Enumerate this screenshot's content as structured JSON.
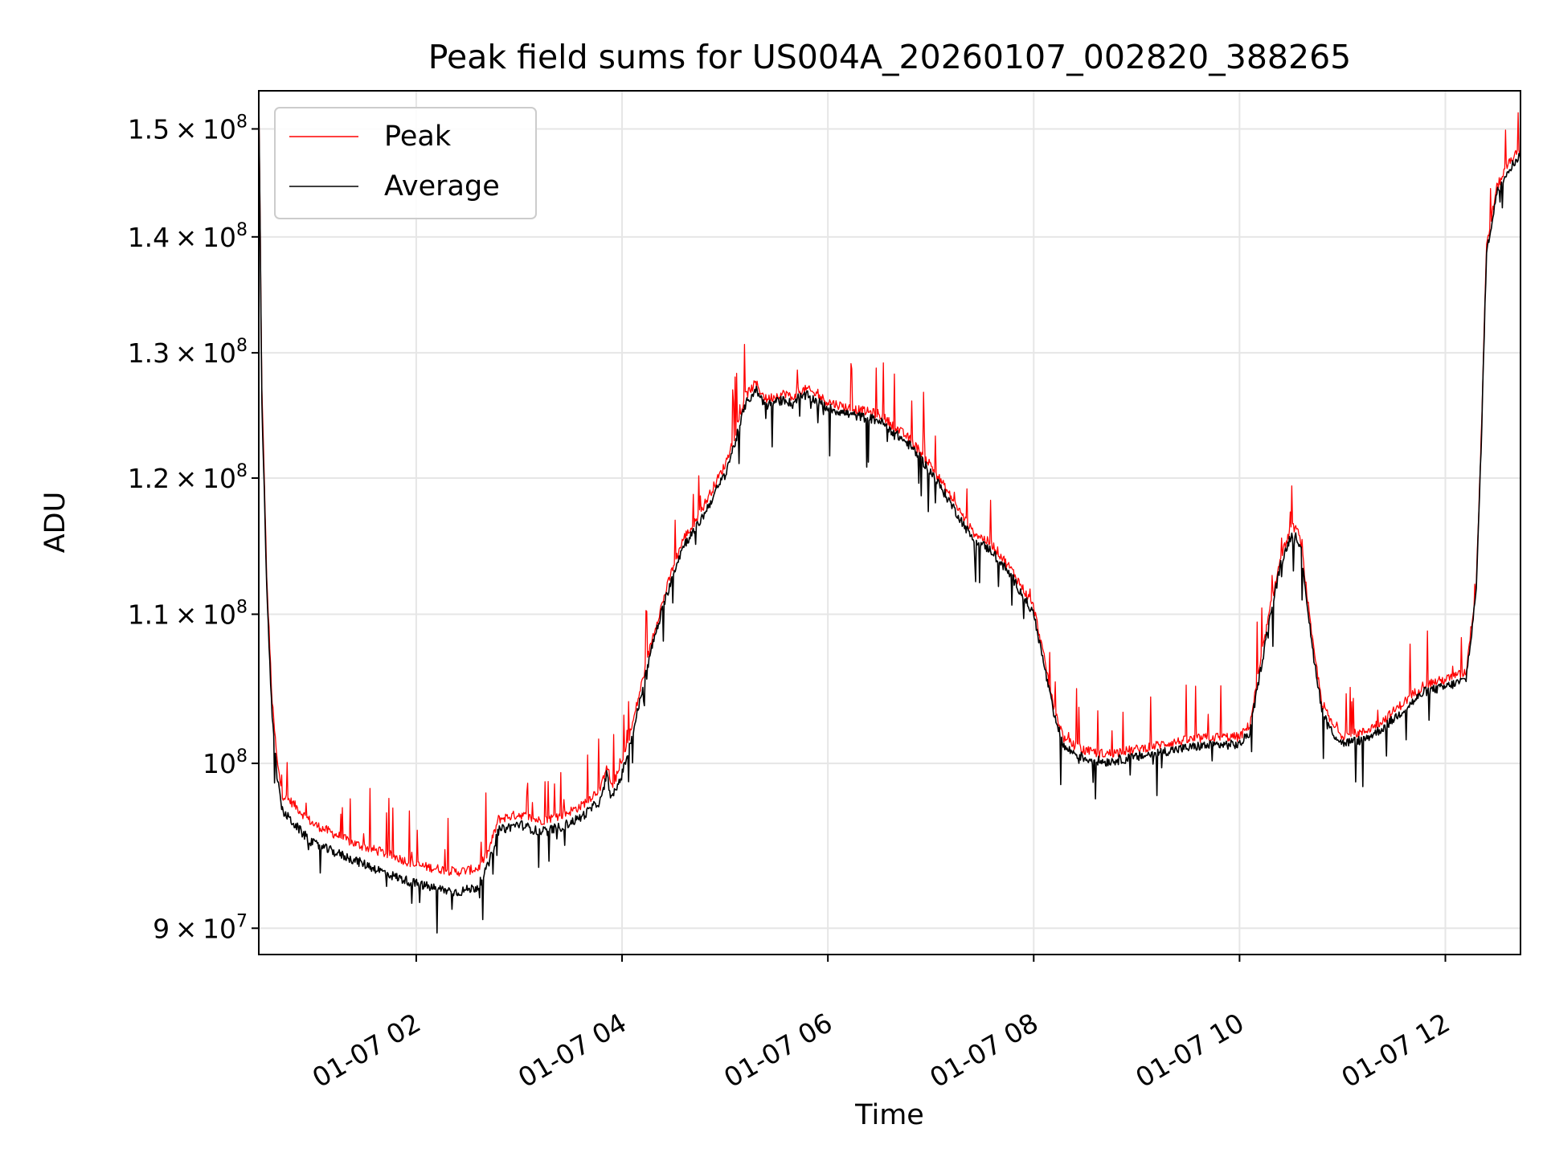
{
  "chart_data": {
    "type": "line",
    "title": "Peak field sums for US004A_20260107_002820_388265",
    "xlabel": "Time",
    "ylabel": "ADU",
    "yscale": "log",
    "grid": true,
    "legend_position": "upper-left",
    "x_unit": "hours since 2026-01-07 00:00",
    "xlim": [
      0.47,
      12.73
    ],
    "ylim": [
      88500000,
      153700000
    ],
    "x_ticks": [
      {
        "x": 2,
        "label": "01-07 02"
      },
      {
        "x": 4,
        "label": "01-07 04"
      },
      {
        "x": 6,
        "label": "01-07 06"
      },
      {
        "x": 8,
        "label": "01-07 08"
      },
      {
        "x": 10,
        "label": "01-07 10"
      },
      {
        "x": 12,
        "label": "01-07 12"
      }
    ],
    "y_ticks": [
      {
        "value": 90000000,
        "mantissa": "9",
        "exp": "7"
      },
      {
        "value": 100000000,
        "mantissa": "",
        "exp": "8"
      },
      {
        "value": 110000000,
        "mantissa": "1.1",
        "exp": "8"
      },
      {
        "value": 120000000,
        "mantissa": "1.2",
        "exp": "8"
      },
      {
        "value": 130000000,
        "mantissa": "1.3",
        "exp": "8"
      },
      {
        "value": 140000000,
        "mantissa": "1.4",
        "exp": "8"
      },
      {
        "value": 150000000,
        "mantissa": "1.5",
        "exp": "8"
      }
    ],
    "tick_times_symbol": "×",
    "tick_base": "10",
    "series": [
      {
        "name": "Peak",
        "color": "#ff0000",
        "x": [
          0.47,
          0.5,
          0.55,
          0.6,
          0.65,
          0.7,
          0.8,
          0.9,
          1.0,
          1.2,
          1.4,
          1.6,
          1.8,
          2.0,
          2.2,
          2.4,
          2.6,
          2.7,
          2.8,
          3.0,
          3.2,
          3.4,
          3.6,
          3.8,
          3.85,
          3.9,
          4.0,
          4.1,
          4.2,
          4.3,
          4.4,
          4.5,
          4.6,
          4.7,
          4.8,
          4.9,
          5.0,
          5.1,
          5.2,
          5.3,
          5.35,
          5.4,
          5.5,
          5.6,
          5.65,
          5.7,
          5.8,
          6.0,
          6.2,
          6.5,
          6.8,
          7.0,
          7.2,
          7.4,
          7.6,
          7.8,
          8.0,
          8.1,
          8.2,
          8.3,
          8.5,
          8.7,
          9.0,
          9.3,
          9.6,
          9.8,
          10.0,
          10.1,
          10.2,
          10.3,
          10.4,
          10.5,
          10.55,
          10.6,
          10.7,
          10.8,
          10.9,
          11.0,
          11.2,
          11.4,
          11.6,
          11.8,
          12.0,
          12.2,
          12.3,
          12.35,
          12.4,
          12.5,
          12.6,
          12.7,
          12.73
        ],
        "y": [
          153000000,
          127000000,
          112000000,
          104000000,
          100000000,
          98000000,
          97500000,
          96800000,
          96200000,
          95600000,
          95000000,
          94600000,
          94200000,
          93700000,
          93500000,
          93300000,
          93500000,
          94500000,
          96500000,
          96800000,
          96400000,
          96700000,
          97300000,
          98500000,
          100000000,
          98500000,
          100000000,
          102500000,
          105500000,
          108500000,
          111000000,
          113500000,
          115500000,
          116500000,
          118000000,
          119500000,
          121000000,
          123500000,
          126500000,
          127500000,
          126800000,
          126200000,
          126500000,
          126700000,
          126200000,
          126800000,
          127000000,
          126000000,
          125500000,
          125000000,
          123000000,
          121000000,
          118500000,
          116000000,
          115000000,
          113000000,
          110500000,
          107000000,
          103500000,
          101500000,
          100800000,
          100600000,
          100900000,
          101300000,
          101600000,
          101700000,
          101700000,
          102500000,
          106500000,
          110500000,
          114000000,
          116200000,
          116300000,
          115000000,
          108500000,
          104000000,
          102500000,
          101800000,
          102000000,
          102800000,
          104000000,
          105200000,
          105500000,
          106000000,
          112000000,
          123500000,
          139000000,
          144500000,
          146500000,
          147700000,
          148000000
        ],
        "line_width": "thin"
      },
      {
        "name": "Average",
        "color": "#000000",
        "x": [
          0.47,
          0.5,
          0.55,
          0.6,
          0.65,
          0.7,
          0.8,
          0.9,
          1.0,
          1.2,
          1.4,
          1.6,
          1.8,
          2.0,
          2.2,
          2.4,
          2.6,
          2.7,
          2.8,
          3.0,
          3.2,
          3.4,
          3.6,
          3.8,
          3.85,
          3.9,
          4.0,
          4.1,
          4.2,
          4.3,
          4.4,
          4.5,
          4.6,
          4.7,
          4.8,
          4.9,
          5.0,
          5.1,
          5.2,
          5.3,
          5.35,
          5.4,
          5.5,
          5.6,
          5.65,
          5.7,
          5.8,
          6.0,
          6.2,
          6.5,
          6.8,
          7.0,
          7.2,
          7.4,
          7.6,
          7.8,
          8.0,
          8.1,
          8.2,
          8.3,
          8.5,
          8.7,
          9.0,
          9.3,
          9.6,
          9.8,
          10.0,
          10.1,
          10.2,
          10.3,
          10.4,
          10.5,
          10.55,
          10.6,
          10.7,
          10.8,
          10.9,
          11.0,
          11.2,
          11.4,
          11.6,
          11.8,
          12.0,
          12.2,
          12.3,
          12.35,
          12.4,
          12.5,
          12.6,
          12.7,
          12.73
        ],
        "y": [
          152500000,
          126000000,
          111000000,
          103000000,
          99000000,
          97000000,
          96300000,
          95600000,
          95000000,
          94500000,
          94000000,
          93500000,
          93000000,
          92600000,
          92300000,
          92100000,
          92400000,
          93700000,
          95800000,
          96200000,
          95700000,
          96000000,
          96600000,
          97700000,
          99300000,
          97700000,
          99300000,
          101800000,
          104900000,
          108000000,
          110500000,
          113000000,
          115000000,
          116000000,
          117300000,
          118800000,
          120300000,
          122800000,
          125800000,
          127000000,
          126300000,
          125700000,
          126000000,
          126200000,
          125700000,
          126300000,
          126500000,
          125500000,
          125000000,
          124500000,
          122500000,
          120500000,
          118000000,
          115500000,
          114500000,
          112500000,
          110000000,
          106500000,
          103000000,
          101000000,
          100300000,
          100100000,
          100400000,
          100800000,
          101100000,
          101200000,
          101200000,
          102000000,
          106000000,
          110000000,
          113500000,
          115700000,
          115800000,
          114500000,
          108000000,
          103500000,
          102000000,
          101300000,
          101500000,
          102300000,
          103500000,
          104700000,
          105000000,
          105500000,
          111500000,
          123000000,
          138500000,
          144000000,
          146000000,
          147200000,
          147500000
        ]
      }
    ],
    "legend": [
      {
        "label": "Peak",
        "color": "#ff0000"
      },
      {
        "label": "Average",
        "color": "#000000"
      }
    ]
  }
}
